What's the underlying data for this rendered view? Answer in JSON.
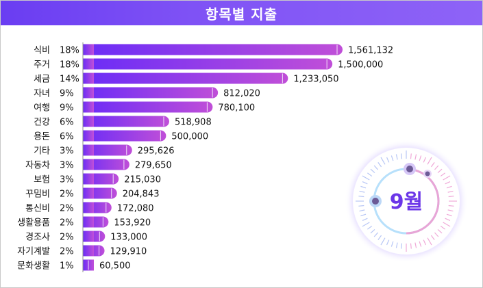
{
  "header": {
    "title": "항목별 지출"
  },
  "badge": {
    "month_label": "9월"
  },
  "colors": {
    "title_start": "#6a3df2",
    "title_end": "#8e63f7",
    "bar_start": "#6a2cf7",
    "bar_end": "#c04fd8",
    "month_text": "#6b36e8"
  },
  "chart_data": {
    "type": "bar",
    "orientation": "horizontal",
    "title": "항목별 지출",
    "categories": [
      "식비",
      "주거",
      "세금",
      "자녀",
      "여행",
      "건강",
      "용돈",
      "기타",
      "자동차",
      "보험",
      "꾸밈비",
      "통신비",
      "생활용품",
      "경조사",
      "자기계발",
      "문화생활"
    ],
    "percent_labels": [
      "18%",
      "18%",
      "14%",
      "9%",
      "9%",
      "6%",
      "6%",
      "3%",
      "3%",
      "3%",
      "2%",
      "2%",
      "2%",
      "2%",
      "2%",
      "1%"
    ],
    "value_labels": [
      "1,561,132",
      "1,500,000",
      "1,233,050",
      "812,020",
      "780,100",
      "518,908",
      "500,000",
      "295,626",
      "279,650",
      "215,030",
      "204,843",
      "172,080",
      "153,920",
      "133,000",
      "129,910",
      "60,500"
    ],
    "values": [
      1561132,
      1500000,
      1233050,
      812020,
      780100,
      518908,
      500000,
      295626,
      279650,
      215030,
      204843,
      172080,
      153920,
      133000,
      129910,
      60500
    ],
    "xlim": [
      0,
      1561132
    ],
    "grid": false,
    "legend": "none"
  }
}
